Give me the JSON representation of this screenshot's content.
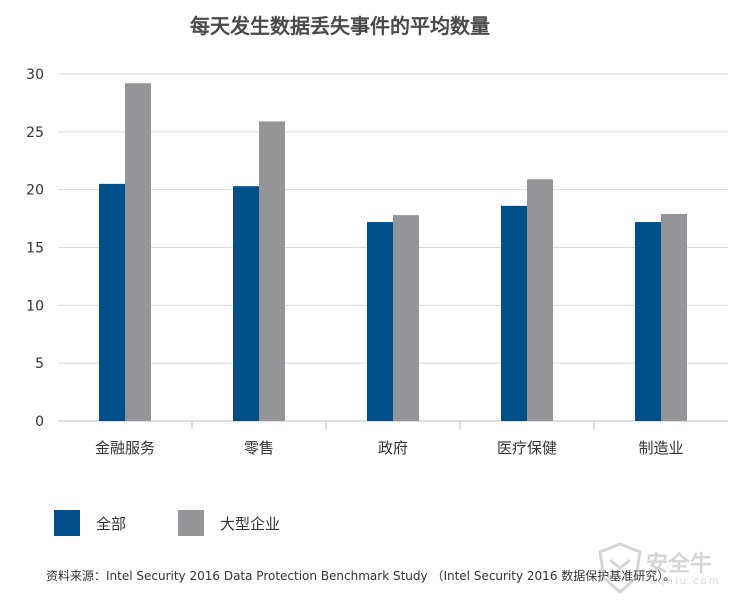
{
  "chart_data": {
    "type": "bar",
    "title": "每天发生数据丢失事件的平均数量",
    "categories": [
      "金融服务",
      "零售",
      "政府",
      "医疗保健",
      "制造业"
    ],
    "series": [
      {
        "name": "全部",
        "values": [
          20.5,
          20.3,
          17.2,
          18.6,
          17.2
        ],
        "color": "#004f8a"
      },
      {
        "name": "大型企业",
        "values": [
          29.2,
          25.9,
          17.8,
          20.9,
          17.9
        ],
        "color": "#939598"
      }
    ],
    "ylim": [
      0,
      30
    ],
    "yticks": [
      "0",
      "5",
      "10",
      "15",
      "20",
      "25",
      "30"
    ],
    "grid": true,
    "legend": "bottom-left"
  },
  "legend": {
    "items": [
      {
        "label": "全部",
        "color": "#004f8a"
      },
      {
        "label": "大型企业",
        "color": "#939598"
      }
    ]
  },
  "source_note": "资料来源：Intel Security 2016 Data Protection Benchmark Study （Intel Security 2016 数据保护基准研究）。",
  "watermark": {
    "text": "安全牛",
    "sub": "aqniu.com",
    "icon": "shield-logo-icon"
  }
}
